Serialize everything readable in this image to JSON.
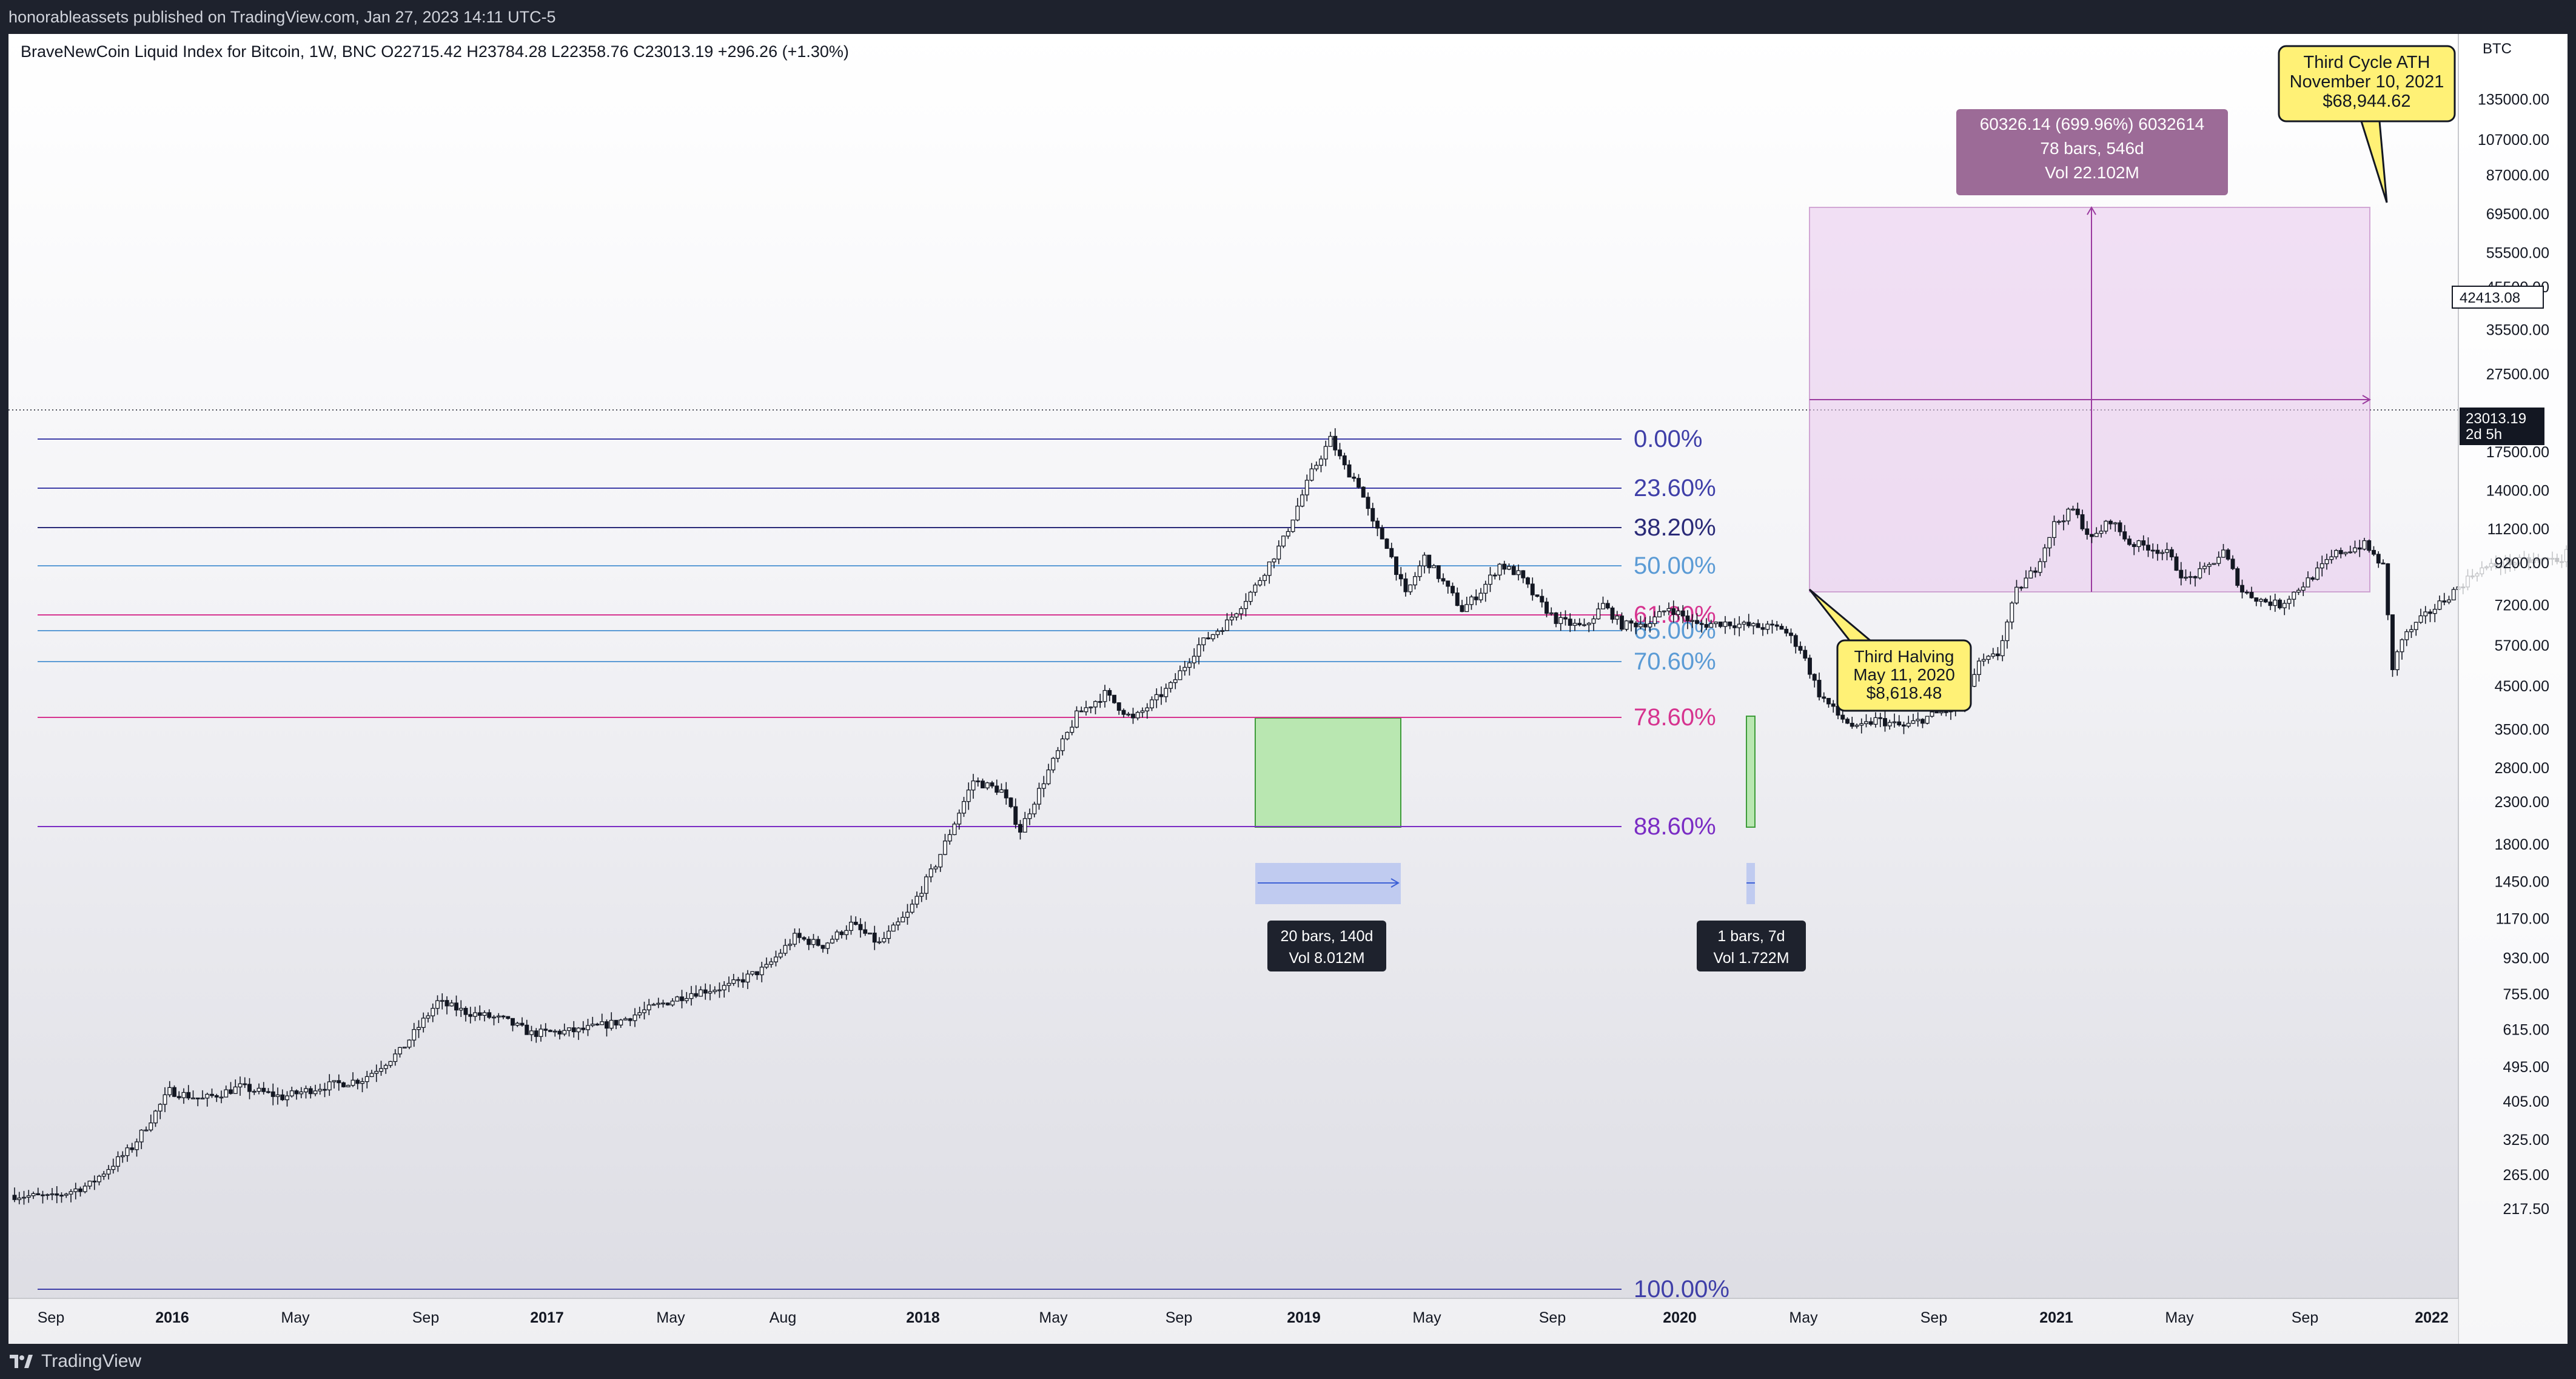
{
  "header": {
    "published": "honorableassets published on TradingView.com, Jan 27, 2023 14:11 UTC-5"
  },
  "legend": {
    "text": "BraveNewCoin Liquid Index for Bitcoin, 1W, BNC  O22715.42  H23784.28  L22358.76  C23013.19  +296.26 (+1.30%)"
  },
  "footer": {
    "brand": "TradingView"
  },
  "chart_data": {
    "type": "candlestick",
    "symbol": "BTC",
    "scale": "log",
    "ylim": [
      190,
      200000
    ],
    "x_ticks": [
      "Sep",
      "2016",
      "May",
      "Sep",
      "2017",
      "May",
      "Aug",
      "2018",
      "May",
      "Sep",
      "2019",
      "May",
      "Sep",
      "2020",
      "May",
      "Sep",
      "2021",
      "May",
      "Sep",
      "2022"
    ],
    "y_ticks": [
      "135000.00",
      "107000.00",
      "87000.00",
      "69500.00",
      "55500.00",
      "45500.00",
      "35500.00",
      "27500.00",
      "17500.00",
      "14000.00",
      "11200.00",
      "9200.00",
      "7200.00",
      "5700.00",
      "4500.00",
      "3500.00",
      "2800.00",
      "2300.00",
      "1800.00",
      "1450.00",
      "1170.00",
      "930.00",
      "755.00",
      "615.00",
      "495.00",
      "405.00",
      "325.00",
      "265.00",
      "217.50"
    ],
    "current_price": "23013.19",
    "countdown": "2d 5h",
    "crosshair_price": "42413.08",
    "fib_levels": [
      {
        "label": "0.00%",
        "color": "#3f3fa8"
      },
      {
        "label": "23.60%",
        "color": "#3f3fa8"
      },
      {
        "label": "38.20%",
        "color": "#2a2a78"
      },
      {
        "label": "50.00%",
        "color": "#5b9bd5"
      },
      {
        "label": "61.80%",
        "color": "#d6338f"
      },
      {
        "label": "65.00%",
        "color": "#5b9bd5"
      },
      {
        "label": "70.60%",
        "color": "#5b9bd5"
      },
      {
        "label": "78.60%",
        "color": "#d6338f"
      },
      {
        "label": "88.60%",
        "color": "#7a2cc4"
      },
      {
        "label": "100.00%",
        "color": "#3f3fa8"
      }
    ],
    "annotations": {
      "ath_callout": [
        "Third Cycle ATH",
        "November 10, 2021",
        "$68,944.62"
      ],
      "halving_callout": [
        "Third Halving",
        "May 11, 2020",
        "$8,618.48"
      ],
      "range_measure": [
        "60326.14 (699.96%) 6032614",
        "78 bars, 546d",
        "Vol 22.102M"
      ],
      "bear_box_measure": [
        "20 bars, 140d",
        "Vol 8.012M"
      ],
      "covid_measure": [
        "1 bars, 7d",
        "Vol 1.722M"
      ]
    },
    "colors": {
      "up": "#ffffff",
      "down": "#131722",
      "callout": "#fff176",
      "range_box": "#e9c9ee",
      "green_box": "#b9e7b1",
      "measure_label": "#9c6b97"
    }
  }
}
